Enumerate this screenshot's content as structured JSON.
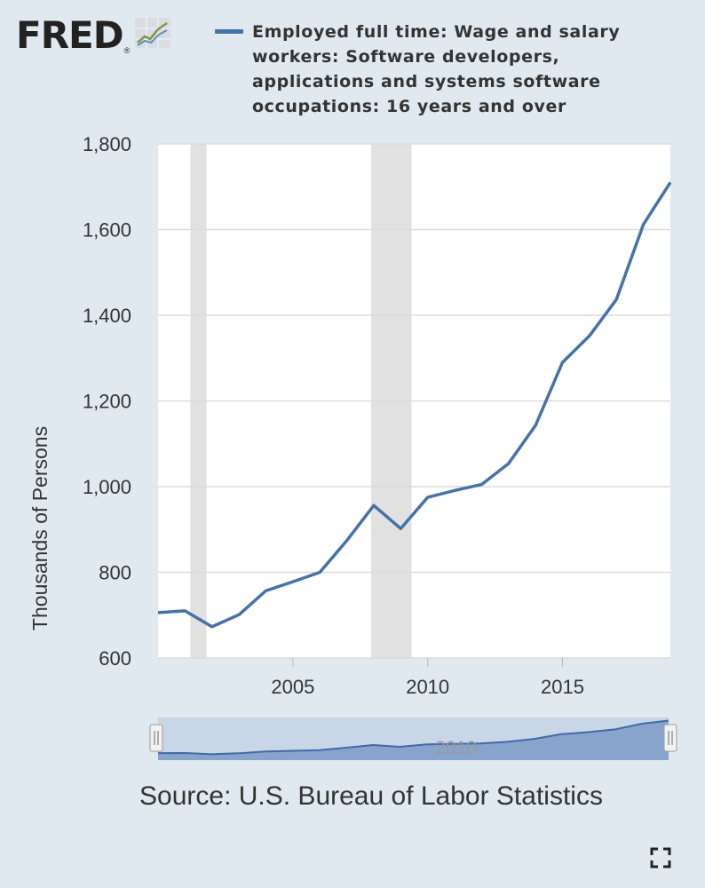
{
  "logo": {
    "text": "FRED",
    "registered": "®"
  },
  "legend": {
    "label": "Employed full time: Wage and salary workers: Software developers, applications and systems software occupations: 16 years and over"
  },
  "source": "Source: U.S. Bureau of Labor Statistics",
  "navigator": {
    "center_label": "2010"
  },
  "colors": {
    "line": "#4572a7",
    "recession": "#e1e1e1",
    "background": "#e1e9f0",
    "plot": "#ffffff"
  },
  "icons": {
    "logo_graph": "trend-graph-icon",
    "fullscreen": "fullscreen-icon"
  },
  "chart_data": {
    "type": "line",
    "title": "",
    "xlabel": "",
    "ylabel": "Thousands of Persons",
    "x": [
      2000,
      2001,
      2002,
      2003,
      2004,
      2005,
      2006,
      2007,
      2008,
      2009,
      2010,
      2011,
      2012,
      2013,
      2014,
      2015,
      2016,
      2017,
      2018,
      2019
    ],
    "series": [
      {
        "name": "Employed full time: Wage and salary workers: Software developers, applications and systems software occupations: 16 years and over",
        "values": [
          706,
          710,
          673,
          701,
          757,
          778,
          800,
          874,
          956,
          902,
          975,
          991,
          1005,
          1054,
          1143,
          1290,
          1352,
          1437,
          1612,
          1710
        ]
      }
    ],
    "xlim": [
      2000,
      2019
    ],
    "ylim": [
      600,
      1800
    ],
    "x_ticks": [
      2005,
      2010,
      2015
    ],
    "y_ticks": [
      600,
      800,
      1000,
      1200,
      1400,
      1600,
      1800
    ],
    "y_tick_labels": [
      "600",
      "800",
      "1,000",
      "1,200",
      "1,400",
      "1,600",
      "1,800"
    ],
    "recessions": [
      [
        2001.2,
        2001.8
      ],
      [
        2007.9,
        2009.4
      ]
    ],
    "grid": true,
    "legend_position": "top"
  }
}
